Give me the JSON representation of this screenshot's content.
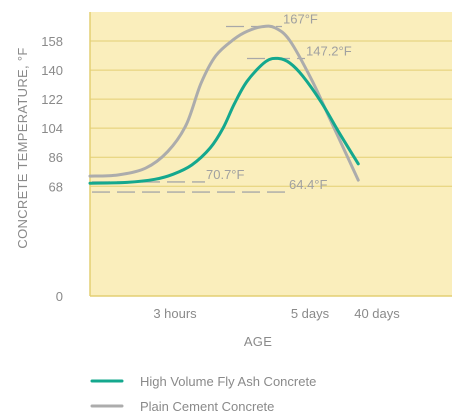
{
  "chart_data": {
    "type": "line",
    "xlabel": "AGE",
    "ylabel": "CONCRETE TEMPERATURE, °F",
    "ylim": [
      0,
      176
    ],
    "y_ticks": [
      0,
      68,
      86,
      104,
      122,
      140,
      158
    ],
    "x_ticks": [
      "3 hours",
      "5 days",
      "40 days"
    ],
    "grid": true,
    "background_color": "#faeebc",
    "grid_color": "#e3cf73",
    "legend_position": "bottom",
    "series": [
      {
        "name": "High Volume Fly Ash Concrete",
        "color": "#14a88e",
        "points": [
          [
            0.0,
            69.9
          ],
          [
            0.2,
            70.4
          ],
          [
            0.35,
            72.3
          ],
          [
            0.45,
            75.5
          ],
          [
            0.55,
            81.2
          ],
          [
            0.65,
            91.8
          ],
          [
            0.72,
            104.2
          ],
          [
            0.78,
            119.0
          ],
          [
            0.85,
            133.2
          ],
          [
            0.95,
            145.3
          ],
          [
            1.02,
            147.2
          ],
          [
            1.08,
            144.4
          ],
          [
            1.15,
            136.3
          ],
          [
            1.25,
            120.1
          ],
          [
            1.35,
            100.6
          ],
          [
            1.45,
            81.9
          ]
        ]
      },
      {
        "name": "Plain Cement Concrete",
        "color": "#acacac",
        "points": [
          [
            0.0,
            74.3
          ],
          [
            0.15,
            75.0
          ],
          [
            0.3,
            79.2
          ],
          [
            0.42,
            89.5
          ],
          [
            0.52,
            106.1
          ],
          [
            0.6,
            131.8
          ],
          [
            0.68,
            148.9
          ],
          [
            0.78,
            159.3
          ],
          [
            0.85,
            164.1
          ],
          [
            0.93,
            166.9
          ],
          [
            1.0,
            166.2
          ],
          [
            1.08,
            158.3
          ],
          [
            1.2,
            133.6
          ],
          [
            1.3,
            108.9
          ],
          [
            1.4,
            84.2
          ],
          [
            1.45,
            71.8
          ]
        ]
      }
    ],
    "annotations": [
      {
        "text": "167°F",
        "value": 167
      },
      {
        "text": "147.2°F",
        "value": 147.2
      },
      {
        "text": "70.7°F",
        "value": 70.7
      },
      {
        "text": "64.4°F",
        "value": 64.4
      }
    ]
  }
}
